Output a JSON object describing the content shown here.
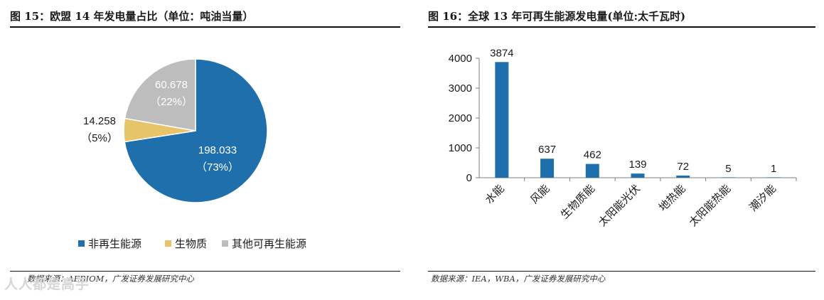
{
  "left": {
    "title": "图 15：欧盟 14 年发电量占比（单位：吨油当量）",
    "source": "数据来源：AEBIOM，广发证券发展研究中心",
    "colors": {
      "non_renewable": "#1f6fad",
      "biomass": "#e6c46a",
      "other_renewable": "#bdbdbd"
    }
  },
  "right": {
    "title": "图 16：全球 13 年可再生能源发电量(单位:太千瓦时)",
    "source": "数据来源：IEA，WBA，广发证券发展研究中心",
    "colors": {
      "bar": "#1f6fad"
    }
  },
  "watermark": "人人都是高手",
  "chart_data": [
    {
      "type": "pie",
      "title": "欧盟 14 年发电量占比（单位：吨油当量）",
      "slices": [
        {
          "name": "非再生能源",
          "value": 198.033,
          "value_label": "198.033",
          "pct_label": "（73%）"
        },
        {
          "name": "生物质",
          "value": 14.258,
          "value_label": "14.258",
          "pct_label": "（5%）"
        },
        {
          "name": "其他可再生能源",
          "value": 60.678,
          "value_label": "60.678",
          "pct_label": "（22%）"
        }
      ],
      "legend": {
        "placement": "bottom",
        "entries": [
          "非再生能源",
          "生物质",
          "其他可再生能源"
        ]
      }
    },
    {
      "type": "bar",
      "title": "全球 13 年可再生能源发电量(单位:太千瓦时)",
      "categories": [
        "水能",
        "风能",
        "生物质能",
        "太阳能光伏",
        "地热能",
        "太阳能热能",
        "潮汐能"
      ],
      "values": [
        3874,
        637,
        462,
        139,
        72,
        5,
        1
      ],
      "data_labels": [
        "3874",
        "637",
        "462",
        "139",
        "72",
        "5",
        "1"
      ],
      "yticks": [
        "0",
        "1000",
        "2000",
        "3000",
        "4000"
      ],
      "ylim": [
        0,
        4000
      ],
      "grid": false
    }
  ]
}
